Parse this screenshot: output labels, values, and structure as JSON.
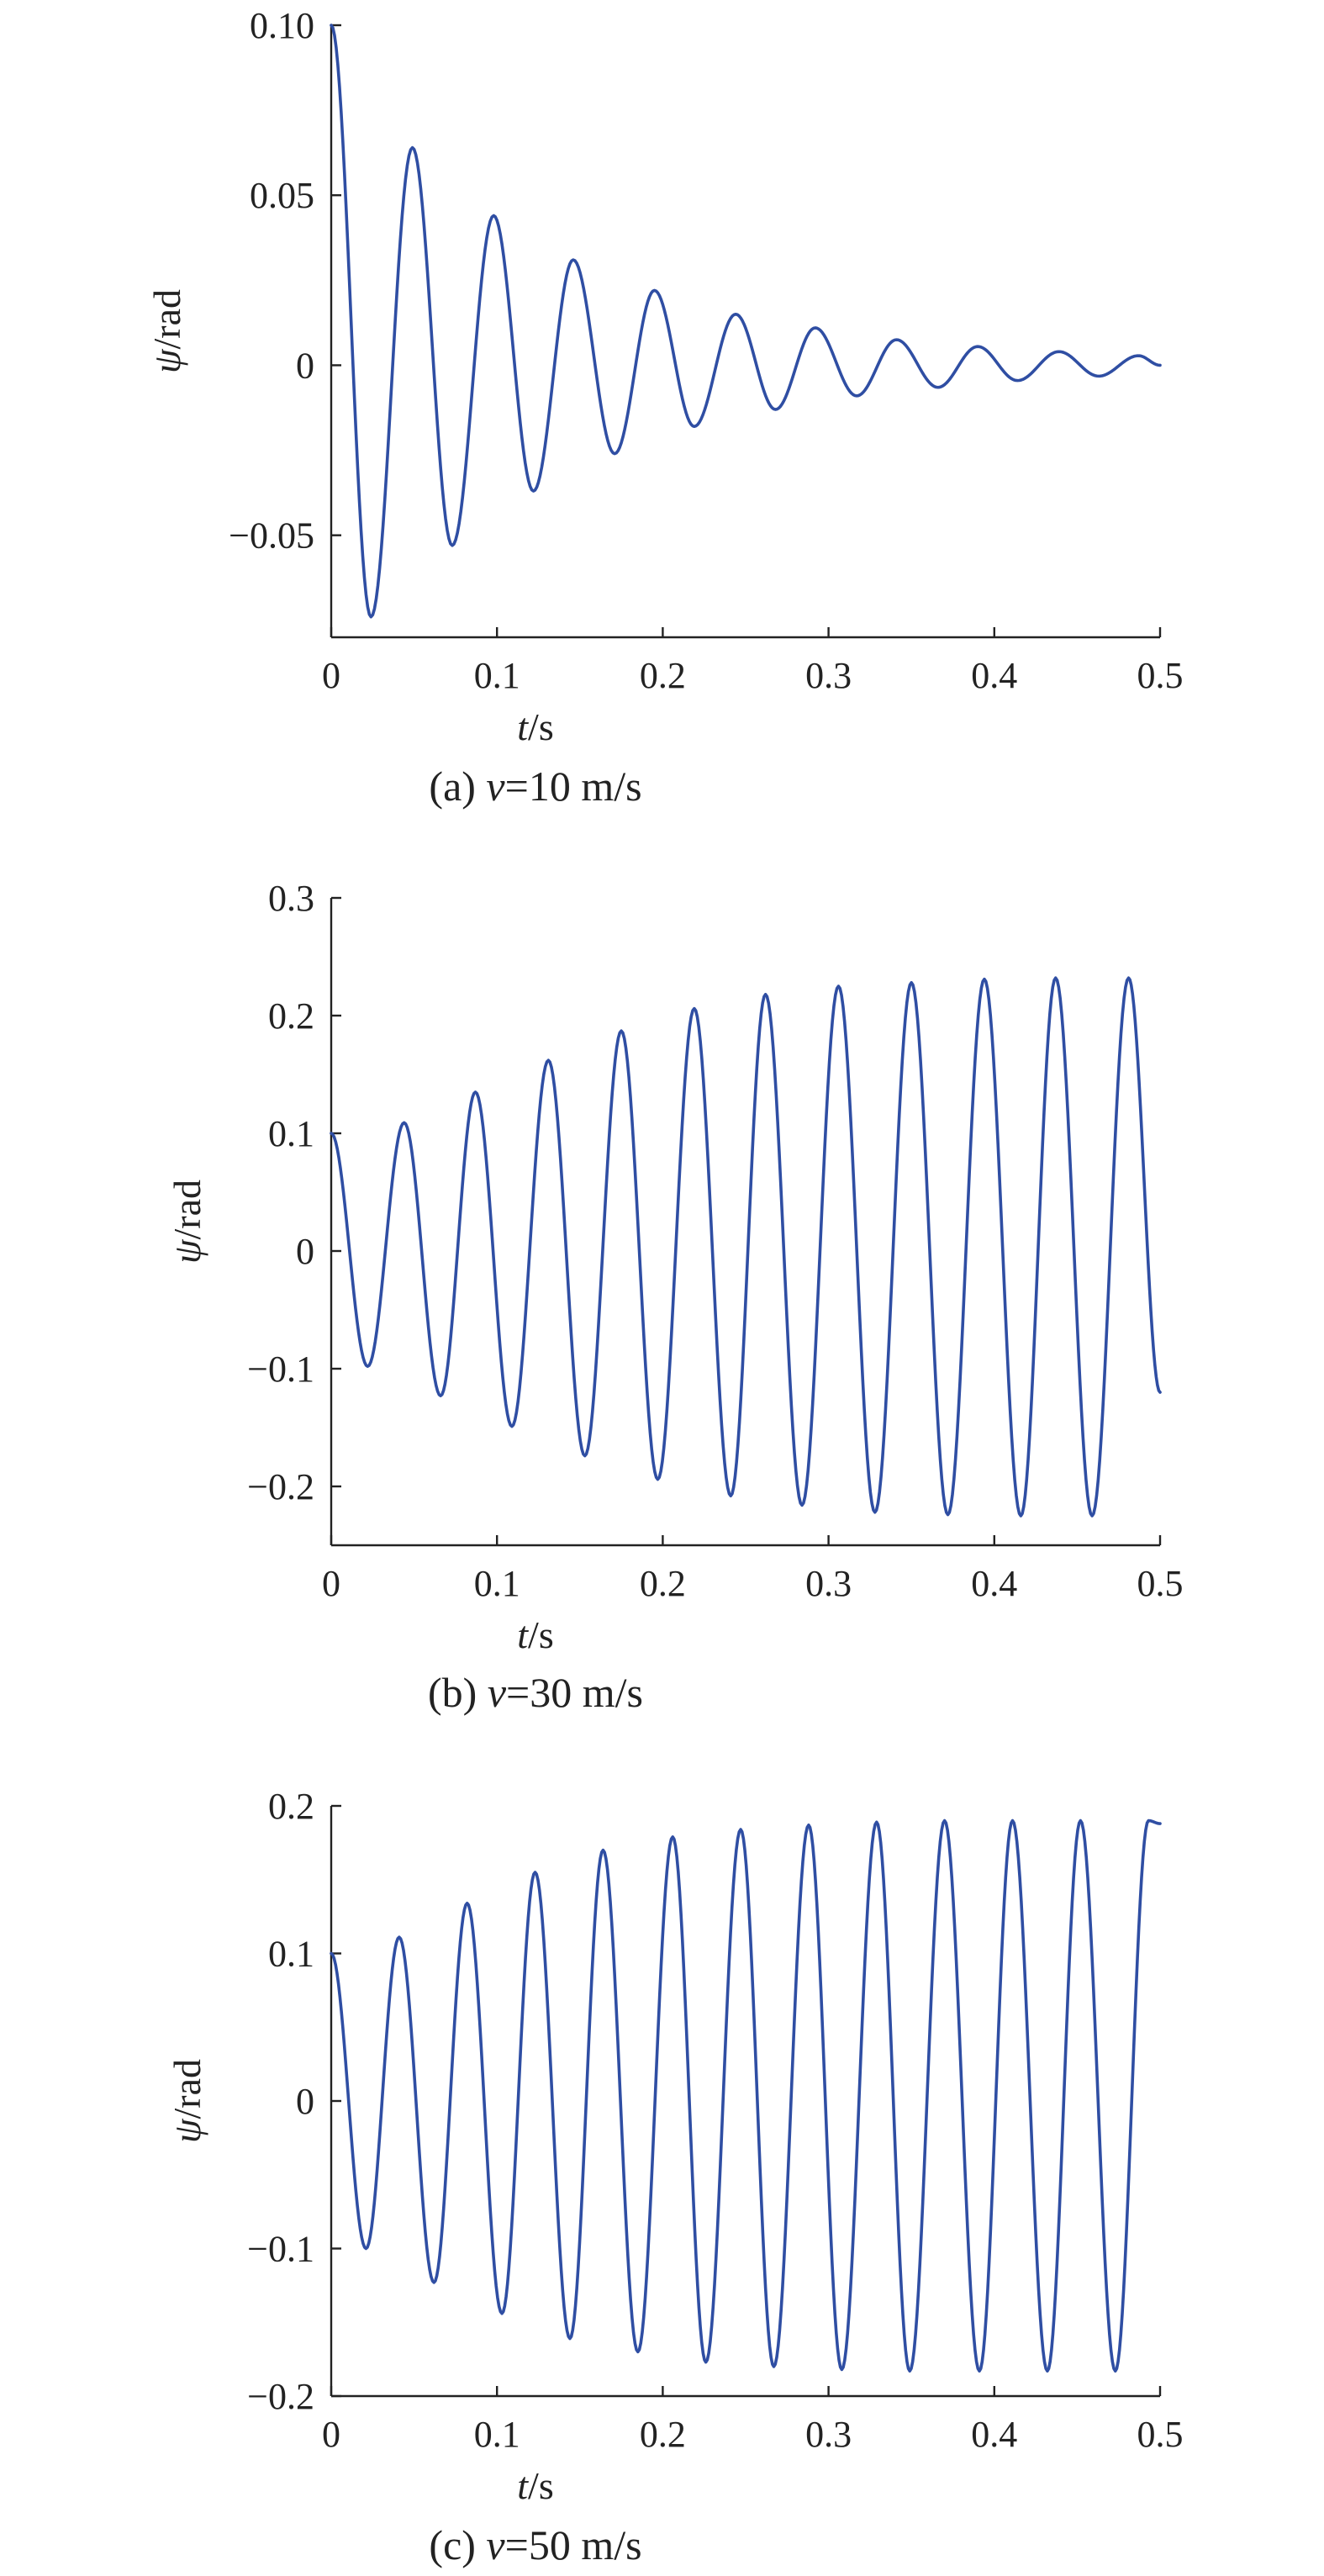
{
  "colors": {
    "series": "#2f4ea3",
    "axis": "#222222"
  },
  "chart_data": [
    {
      "type": "line",
      "caption": {
        "prefix": "(a) ",
        "var": "v",
        "rest": "=10 m/s"
      },
      "xlabel": {
        "var": "t",
        "unit": "/s"
      },
      "ylabel": {
        "var": "ψ",
        "unit": "/rad"
      },
      "xlim": [
        0,
        0.5
      ],
      "ylim": [
        -0.08,
        0.1
      ],
      "xticks": [
        0,
        0.1,
        0.2,
        0.3,
        0.4,
        0.5
      ],
      "xtick_labels": [
        "0",
        "0.1",
        "0.2",
        "0.3",
        "0.4",
        "0.5"
      ],
      "yticks": [
        0.1,
        0.05,
        0,
        -0.05
      ],
      "ytick_labels": [
        "0.10",
        "0.05",
        "0",
        "−0.05"
      ],
      "grid": false,
      "series": [
        {
          "x": [
            0,
            0.024,
            0.049,
            0.073,
            0.098,
            0.122,
            0.146,
            0.171,
            0.195,
            0.219,
            0.244,
            0.268,
            0.292,
            0.317,
            0.341,
            0.366,
            0.39,
            0.414,
            0.439,
            0.463,
            0.487,
            0.5
          ],
          "y": [
            0.1,
            -0.074,
            0.064,
            -0.053,
            0.044,
            -0.037,
            0.031,
            -0.026,
            0.022,
            -0.018,
            0.015,
            -0.013,
            0.011,
            -0.009,
            0.0075,
            -0.0065,
            0.0055,
            -0.0045,
            0.004,
            -0.0032,
            0.0028,
            0.0
          ]
        }
      ]
    },
    {
      "type": "line",
      "caption": {
        "prefix": "(b) ",
        "var": "v",
        "rest": "=30 m/s"
      },
      "xlabel": {
        "var": "t",
        "unit": "/s"
      },
      "ylabel": {
        "var": "ψ",
        "unit": "/rad"
      },
      "xlim": [
        0,
        0.5
      ],
      "ylim": [
        -0.25,
        0.3
      ],
      "xticks": [
        0,
        0.1,
        0.2,
        0.3,
        0.4,
        0.5
      ],
      "xtick_labels": [
        "0",
        "0.1",
        "0.2",
        "0.3",
        "0.4",
        "0.5"
      ],
      "yticks": [
        0.3,
        0.2,
        0.1,
        0,
        -0.1,
        -0.2
      ],
      "ytick_labels": [
        "0.3",
        "0.2",
        "0.1",
        "0",
        "−0.1",
        "−0.2"
      ],
      "grid": false,
      "series": [
        {
          "x": [
            0,
            0.022,
            0.044,
            0.066,
            0.087,
            0.109,
            0.131,
            0.153,
            0.175,
            0.197,
            0.219,
            0.241,
            0.262,
            0.284,
            0.306,
            0.328,
            0.35,
            0.372,
            0.394,
            0.416,
            0.437,
            0.459,
            0.481,
            0.5
          ],
          "y": [
            0.1,
            -0.098,
            0.109,
            -0.123,
            0.135,
            -0.149,
            0.162,
            -0.174,
            0.187,
            -0.194,
            0.206,
            -0.208,
            0.218,
            -0.216,
            0.225,
            -0.222,
            0.228,
            -0.224,
            0.231,
            -0.225,
            0.232,
            -0.225,
            0.232,
            -0.12
          ]
        }
      ]
    },
    {
      "type": "line",
      "caption": {
        "prefix": "(c) ",
        "var": "v",
        "rest": "=50 m/s"
      },
      "xlabel": {
        "var": "t",
        "unit": "/s"
      },
      "ylabel": {
        "var": "ψ",
        "unit": "/rad"
      },
      "xlim": [
        0,
        0.5
      ],
      "ylim": [
        -0.2,
        0.2
      ],
      "xticks": [
        0,
        0.1,
        0.2,
        0.3,
        0.4,
        0.5
      ],
      "xtick_labels": [
        "0",
        "0.1",
        "0.2",
        "0.3",
        "0.4",
        "0.5"
      ],
      "yticks": [
        0.2,
        0.1,
        0,
        -0.1,
        -0.2
      ],
      "ytick_labels": [
        "0.2",
        "0.1",
        "0",
        "−0.1",
        "−0.2"
      ],
      "grid": false,
      "series": [
        {
          "x": [
            0,
            0.021,
            0.041,
            0.062,
            0.082,
            0.103,
            0.123,
            0.144,
            0.164,
            0.185,
            0.206,
            0.226,
            0.247,
            0.267,
            0.288,
            0.308,
            0.329,
            0.349,
            0.37,
            0.391,
            0.411,
            0.432,
            0.452,
            0.473,
            0.493,
            0.5
          ],
          "y": [
            0.1,
            -0.1,
            0.111,
            -0.123,
            0.134,
            -0.144,
            0.155,
            -0.161,
            0.17,
            -0.17,
            0.179,
            -0.177,
            0.184,
            -0.18,
            0.187,
            -0.182,
            0.189,
            -0.183,
            0.19,
            -0.183,
            0.19,
            -0.183,
            0.19,
            -0.183,
            0.19,
            0.188
          ]
        }
      ]
    }
  ]
}
